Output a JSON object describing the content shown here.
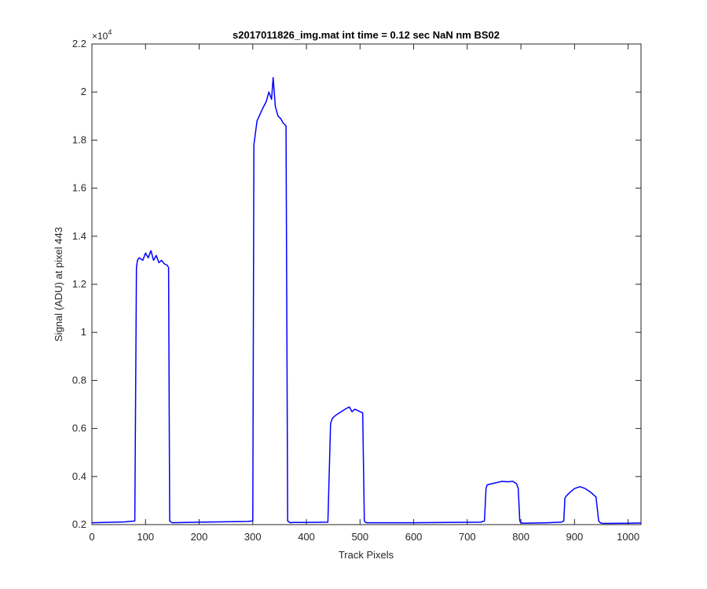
{
  "chart_data": {
    "type": "line",
    "title": "s2017011826_img.mat int time = 0.12 sec  NaN nm BS02",
    "xlabel": "Track Pixels",
    "ylabel": "Signal (ADU) at pixel 443",
    "xlim": [
      0,
      1024
    ],
    "ylim": [
      2000,
      22000
    ],
    "xticks": [
      0,
      100,
      200,
      300,
      400,
      500,
      600,
      700,
      800,
      900,
      1000
    ],
    "xtick_labels": [
      "0",
      "100",
      "200",
      "300",
      "400",
      "500",
      "600",
      "700",
      "800",
      "900",
      "1000"
    ],
    "yticks": [
      2000,
      4000,
      6000,
      8000,
      10000,
      12000,
      14000,
      16000,
      18000,
      20000,
      22000
    ],
    "ytick_labels": [
      "0.2",
      "0.4",
      "0.6",
      "0.8",
      "1",
      "1.2",
      "1.4",
      "1.6",
      "1.8",
      "2",
      "2.2"
    ],
    "y_exponent_base": "×10",
    "y_exponent_power": "4",
    "grid": false,
    "series": [
      {
        "color": "#0000ff",
        "x": [
          0,
          60,
          80,
          83,
          85,
          88,
          95,
          100,
          105,
          110,
          115,
          120,
          125,
          130,
          135,
          140,
          143,
          145,
          148,
          150,
          200,
          290,
          300,
          302,
          305,
          308,
          312,
          318,
          325,
          330,
          335,
          338,
          342,
          347,
          352,
          357,
          362,
          365,
          368,
          370,
          375,
          400,
          440,
          445,
          448,
          452,
          458,
          465,
          472,
          480,
          485,
          490,
          495,
          500,
          505,
          508,
          510,
          512,
          515,
          520,
          600,
          725,
          732,
          735,
          737,
          745,
          755,
          765,
          775,
          785,
          792,
          795,
          798,
          800,
          805,
          850,
          875,
          880,
          882,
          885,
          892,
          900,
          910,
          920,
          930,
          940,
          945,
          948,
          950,
          955,
          1000,
          1024
        ],
        "y": [
          2080,
          2110,
          2150,
          12700,
          13000,
          13100,
          13000,
          13300,
          13100,
          13400,
          13000,
          13200,
          12900,
          13000,
          12850,
          12800,
          12700,
          2150,
          2100,
          2080,
          2100,
          2130,
          2150,
          17800,
          18300,
          18800,
          19000,
          19300,
          19600,
          20000,
          19700,
          20600,
          19400,
          19000,
          18900,
          18700,
          18600,
          2150,
          2100,
          2080,
          2090,
          2090,
          2100,
          6200,
          6400,
          6500,
          6600,
          6700,
          6800,
          6900,
          6700,
          6800,
          6750,
          6700,
          6650,
          2150,
          2100,
          2080,
          2080,
          2080,
          2080,
          2100,
          2150,
          3500,
          3650,
          3700,
          3750,
          3800,
          3780,
          3800,
          3700,
          3500,
          2150,
          2080,
          2060,
          2080,
          2100,
          2150,
          3100,
          3200,
          3350,
          3500,
          3580,
          3500,
          3350,
          3150,
          2150,
          2080,
          2060,
          2050,
          2060,
          2070
        ]
      }
    ]
  }
}
